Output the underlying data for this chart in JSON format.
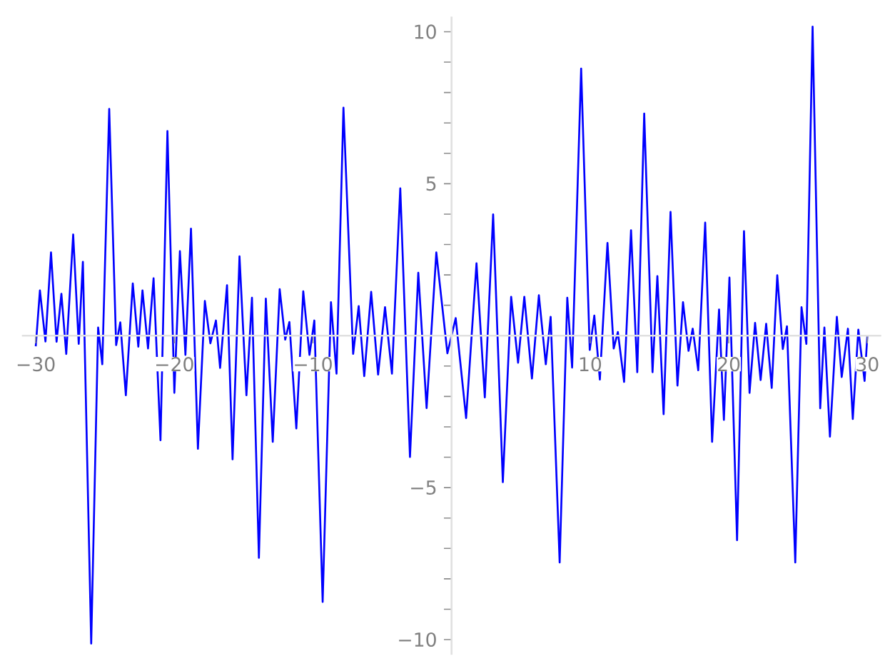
{
  "chart_data": {
    "type": "line",
    "x": [
      -30,
      -29.7,
      -29.3,
      -28.9,
      -28.5,
      -28.15,
      -27.8,
      -27.3,
      -26.9,
      -26.6,
      -26.0,
      -25.5,
      -25.2,
      -24.7,
      -24.2,
      -23.9,
      -23.5,
      -23.0,
      -22.6,
      -22.3,
      -21.9,
      -21.5,
      -21.0,
      -20.5,
      -20.0,
      -19.6,
      -19.2,
      -18.8,
      -18.3,
      -17.8,
      -17.4,
      -17.0,
      -16.7,
      -16.2,
      -15.8,
      -15.3,
      -14.8,
      -14.4,
      -13.9,
      -13.4,
      -12.9,
      -12.4,
      -12.0,
      -11.7,
      -11.2,
      -10.7,
      -10.25,
      -9.9,
      -9.3,
      -8.7,
      -8.3,
      -7.8,
      -7.1,
      -6.7,
      -6.3,
      -5.8,
      -5.3,
      -4.8,
      -4.3,
      -3.7,
      -3.0,
      -2.4,
      -1.8,
      -1.1,
      -0.3,
      0.3,
      1.05,
      1.8,
      2.4,
      3.0,
      3.7,
      4.3,
      4.8,
      5.25,
      5.8,
      6.3,
      6.8,
      7.15,
      7.8,
      8.35,
      8.7,
      9.35,
      9.97,
      10.3,
      10.7,
      11.25,
      11.7,
      12.0,
      12.45,
      12.95,
      13.4,
      13.9,
      14.5,
      14.85,
      15.3,
      15.8,
      16.3,
      16.7,
      17.1,
      17.4,
      17.8,
      18.3,
      18.8,
      19.3,
      19.65,
      20.05,
      20.6,
      21.1,
      21.5,
      21.9,
      22.3,
      22.7,
      23.1,
      23.5,
      23.9,
      24.2,
      24.8,
      25.25,
      25.6,
      26.05,
      26.6,
      26.9,
      27.3,
      27.8,
      28.15,
      28.6,
      28.95,
      29.35,
      29.8,
      30
    ],
    "series": [
      {
        "color": "#0000ff",
        "values": [
          -0.35,
          1.49,
          -0.19,
          2.74,
          -0.2,
          1.38,
          -0.6,
          3.33,
          -0.27,
          2.43,
          -10.13,
          0.27,
          -0.94,
          7.46,
          -0.31,
          0.44,
          -1.96,
          1.72,
          -0.36,
          1.49,
          -0.42,
          1.89,
          -3.44,
          6.73,
          -1.88,
          2.78,
          -0.63,
          3.52,
          -3.72,
          1.14,
          -0.25,
          0.5,
          -1.06,
          1.66,
          -4.07,
          2.61,
          -1.96,
          1.25,
          -7.31,
          1.22,
          -3.49,
          1.53,
          -0.13,
          0.45,
          -3.05,
          1.46,
          -0.63,
          0.5,
          -8.76,
          1.1,
          -1.25,
          7.5,
          -0.6,
          0.97,
          -1.33,
          1.44,
          -1.28,
          0.94,
          -1.25,
          4.85,
          -3.99,
          2.07,
          -2.38,
          2.74,
          -0.58,
          0.58,
          -2.71,
          2.38,
          -2.03,
          3.99,
          -4.82,
          1.28,
          -0.89,
          1.28,
          -1.41,
          1.33,
          -0.94,
          0.62,
          -7.46,
          1.25,
          -1.05,
          8.79,
          -0.47,
          0.66,
          -1.44,
          3.05,
          -0.42,
          0.12,
          -1.52,
          3.47,
          -1.2,
          7.31,
          -1.2,
          1.96,
          -2.58,
          4.07,
          -1.64,
          1.1,
          -0.5,
          0.23,
          -1.14,
          3.72,
          -3.49,
          0.86,
          -2.77,
          1.91,
          -6.73,
          3.44,
          -1.88,
          0.42,
          -1.46,
          0.39,
          -1.72,
          1.99,
          -0.44,
          0.31,
          -7.46,
          0.94,
          -0.27,
          10.17,
          -2.39,
          0.27,
          -3.32,
          0.62,
          -1.36,
          0.23,
          -2.74,
          0.2,
          -1.49,
          0
        ]
      }
    ],
    "xlim": [
      -31,
      31
    ],
    "ylim": [
      -10.5,
      10.5
    ],
    "xticks": [
      {
        "value": -30,
        "label": "−30"
      },
      {
        "value": -20,
        "label": "−20"
      },
      {
        "value": -10,
        "label": "−10"
      },
      10,
      20,
      30
    ],
    "yticks": [
      {
        "value": -10,
        "label": "−10"
      },
      {
        "value": -9,
        "label": null
      },
      {
        "value": -8,
        "label": null
      },
      {
        "value": -7,
        "label": null
      },
      {
        "value": -6,
        "label": null
      },
      {
        "value": -5,
        "label": "−5"
      },
      {
        "value": -4,
        "label": null
      },
      {
        "value": -3,
        "label": null
      },
      {
        "value": -2,
        "label": null
      },
      {
        "value": -1,
        "label": null
      },
      {
        "value": 1,
        "label": null
      },
      {
        "value": 2,
        "label": null
      },
      {
        "value": 3,
        "label": null
      },
      {
        "value": 4,
        "label": null
      },
      {
        "value": 5,
        "label": "5"
      },
      {
        "value": 6,
        "label": null
      },
      {
        "value": 7,
        "label": null
      },
      {
        "value": 8,
        "label": null
      },
      {
        "value": 9,
        "label": null
      },
      {
        "value": 10,
        "label": "10"
      }
    ],
    "grid": false,
    "marker": "none",
    "line_style": "solid"
  }
}
